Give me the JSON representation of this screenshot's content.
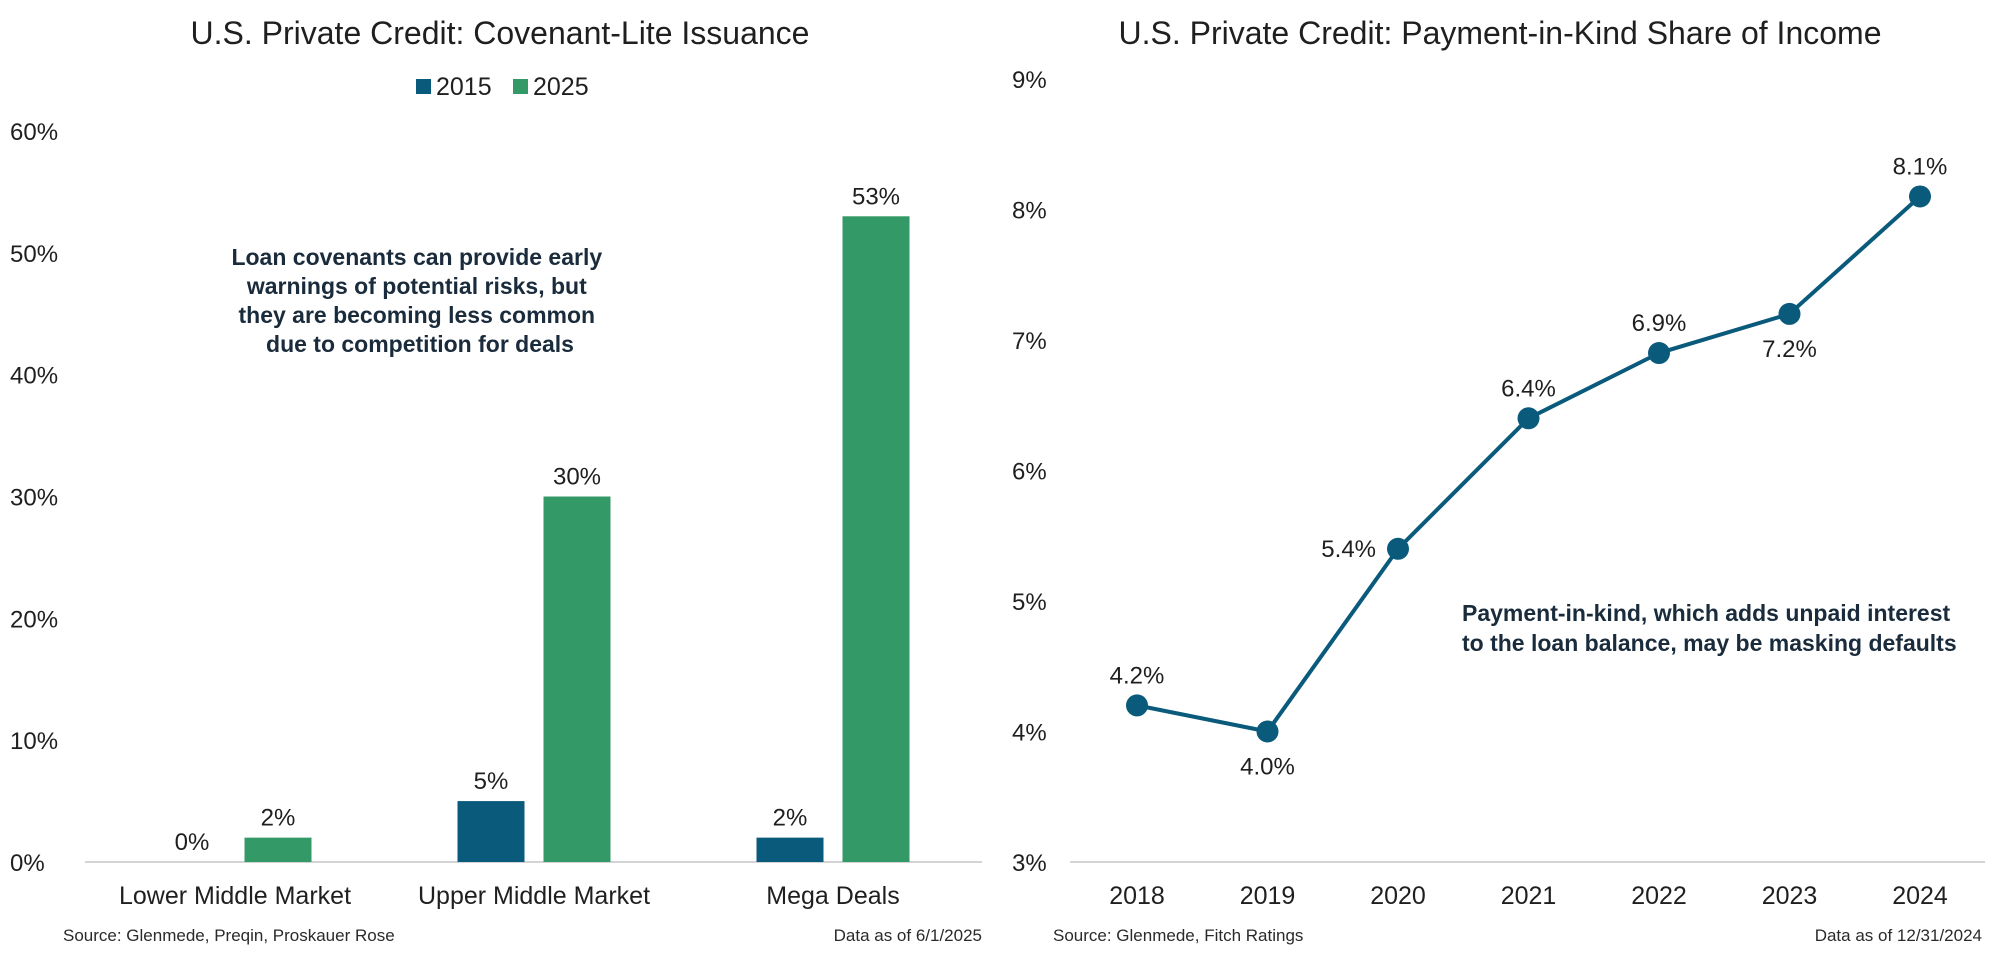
{
  "chart_data": [
    {
      "type": "bar",
      "title": "U.S. Private Credit: Covenant-Lite Issuance",
      "categories": [
        "Lower Middle Market",
        "Upper Middle Market",
        "Mega Deals"
      ],
      "series": [
        {
          "name": "2015",
          "color": "#0a5a7c",
          "values": [
            0,
            5,
            2
          ],
          "labels": [
            "0%",
            "5%",
            "2%"
          ]
        },
        {
          "name": "2025",
          "color": "#339966",
          "values": [
            2,
            30,
            53
          ],
          "labels": [
            "2%",
            "30%",
            "53%"
          ]
        }
      ],
      "ylim": [
        0,
        60
      ],
      "yticks": [
        "0%",
        "10%",
        "20%",
        "30%",
        "40%",
        "50%",
        "60%"
      ],
      "xlabel": "",
      "ylabel": "",
      "legend": "top-center",
      "annotation": [
        "Loan covenants can provide early",
        "warnings of potential risks, but",
        "they are becoming less common",
        "due to competition for deals"
      ],
      "source": "Source: Glenmede, Preqin, Proskauer Rose",
      "data_as_of": "Data as of 6/1/2025"
    },
    {
      "type": "line",
      "title": "U.S. Private Credit: Payment-in-Kind Share of Income",
      "x": [
        "2018",
        "2019",
        "2020",
        "2021",
        "2022",
        "2023",
        "2024"
      ],
      "series": [
        {
          "name": "PIK share of income",
          "color": "#0a5a7c",
          "values": [
            4.2,
            4.0,
            5.4,
            6.4,
            6.9,
            7.2,
            8.1
          ],
          "labels": [
            "4.2%",
            "4.0%",
            "5.4%",
            "6.4%",
            "6.9%",
            "7.2%",
            "8.1%"
          ]
        }
      ],
      "ylim": [
        3,
        9
      ],
      "yticks": [
        "3%",
        "4%",
        "5%",
        "6%",
        "7%",
        "8%",
        "9%"
      ],
      "xlabel": "",
      "ylabel": "",
      "annotation": [
        "Payment-in-kind, which adds unpaid interest",
        "to the loan balance, may be masking defaults"
      ],
      "source": "Source: Glenmede, Fitch Ratings",
      "data_as_of": "Data as of 12/31/2024"
    }
  ]
}
